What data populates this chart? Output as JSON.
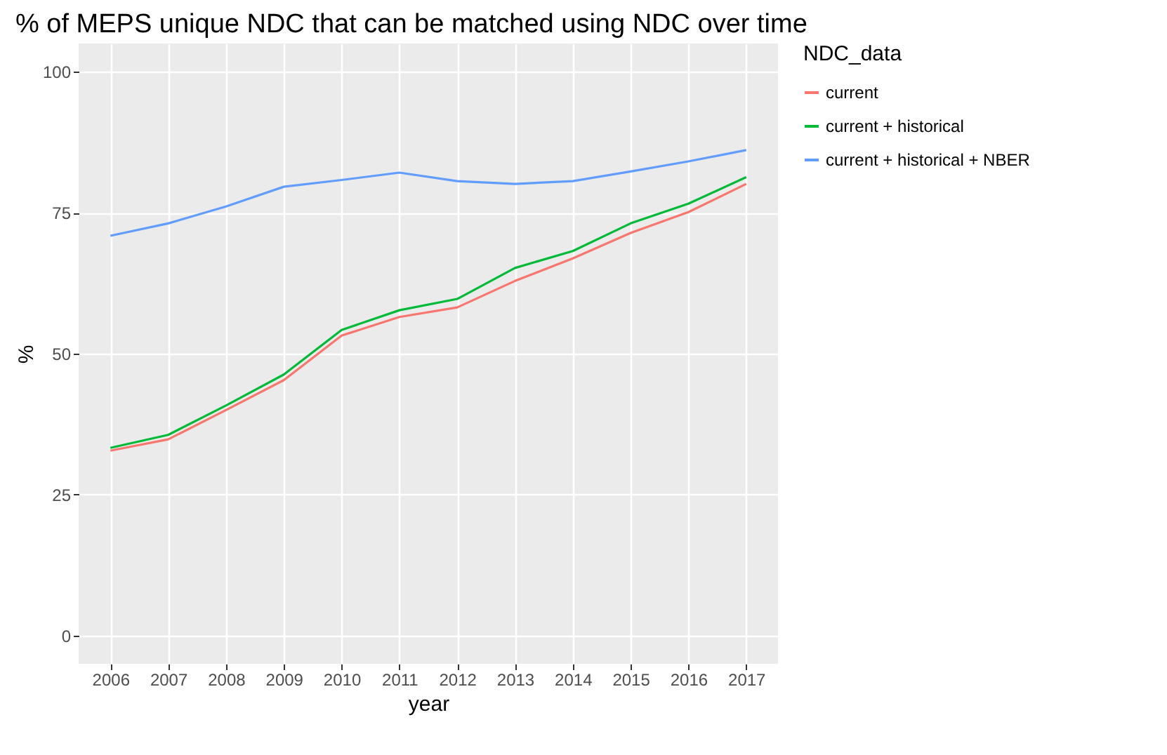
{
  "chart_data": {
    "type": "line",
    "title": "% of MEPS unique NDC that can be matched using NDC over time",
    "xlabel": "year",
    "ylabel": "%",
    "legend_title": "NDC_data",
    "x": [
      2006,
      2007,
      2008,
      2009,
      2010,
      2011,
      2012,
      2013,
      2014,
      2015,
      2016,
      2017
    ],
    "series": [
      {
        "name": "current",
        "color": "#f8766d",
        "values": [
          32.8,
          34.8,
          40.0,
          45.3,
          53.2,
          56.5,
          58.2,
          62.9,
          66.9,
          71.4,
          75.1,
          80.1
        ]
      },
      {
        "name": "current + historical",
        "color": "#00ba38",
        "values": [
          33.3,
          35.6,
          40.8,
          46.3,
          54.2,
          57.7,
          59.7,
          65.2,
          68.2,
          73.1,
          76.6,
          81.3
        ]
      },
      {
        "name": "current + historical + NBER",
        "color": "#619cff",
        "values": [
          70.9,
          73.1,
          76.1,
          79.6,
          80.8,
          82.1,
          80.6,
          80.1,
          80.6,
          82.3,
          84.1,
          86.1
        ]
      }
    ],
    "xlim": [
      2005.45,
      2017.55
    ],
    "xticks": [
      2006,
      2007,
      2008,
      2009,
      2010,
      2011,
      2012,
      2013,
      2014,
      2015,
      2016,
      2017
    ],
    "ylim": [
      -5,
      105
    ],
    "yticks": [
      0,
      25,
      50,
      75,
      100
    ],
    "grid": true,
    "legend": "right",
    "line_style": "solid",
    "marker": "none"
  }
}
